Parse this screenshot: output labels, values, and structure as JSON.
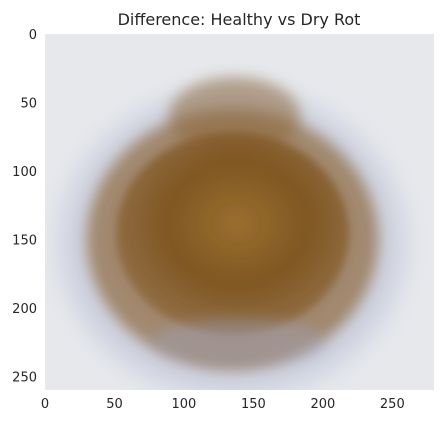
{
  "chart_data": {
    "type": "heatmap",
    "title": "Difference: Healthy vs Dry Rot",
    "xlabel": "",
    "ylabel": "",
    "x_range": [
      0,
      280
    ],
    "y_range": [
      0,
      260
    ],
    "y_inverted": true,
    "x_ticks": [
      0,
      50,
      100,
      150,
      200,
      250
    ],
    "y_ticks": [
      0,
      50,
      100,
      150,
      200,
      250
    ],
    "grid": false,
    "image_content": "mean difference image of a potato: a brown rounded blob on a light grey background with faint bluish halo",
    "colors": {
      "background": "#e6e8ec",
      "halo": "#9fa5c4",
      "blob_outer": "#8f6a3f",
      "blob_core": "#7a4f16",
      "blob_highlight": "#9a6a24"
    },
    "blob": {
      "center": [
        135,
        150
      ],
      "radius_x": 105,
      "radius_y": 95
    }
  }
}
